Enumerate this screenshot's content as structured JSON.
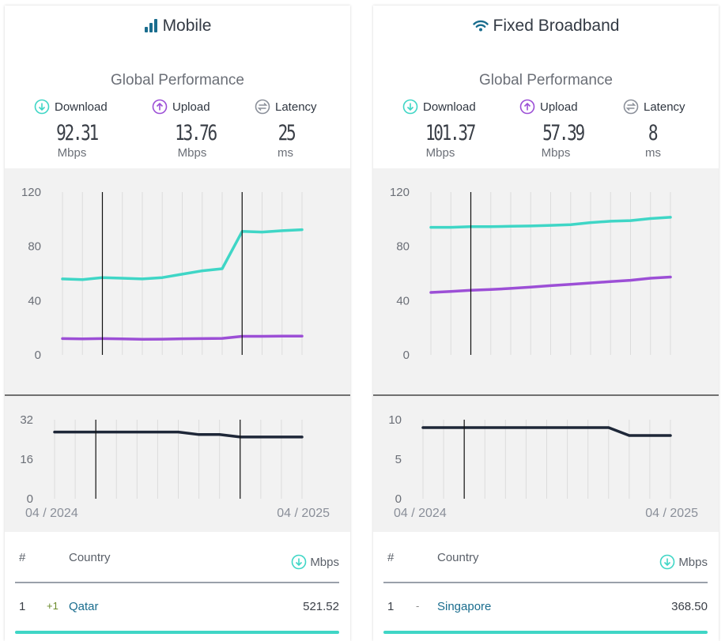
{
  "colors": {
    "download": "#3fd6c6",
    "upload": "#9c4fd6",
    "latency": "#8a8f99",
    "latency_line": "#1e2738",
    "chart_background": "#f2f2f2"
  },
  "panels": [
    {
      "id": "mobile",
      "title": "Mobile",
      "title_icon": "mobile-signal-icon",
      "subtitle": "Global Performance",
      "metrics": {
        "download": {
          "label": "Download",
          "value": "92.31",
          "unit": "Mbps"
        },
        "upload": {
          "label": "Upload",
          "value": "13.76",
          "unit": "Mbps"
        },
        "latency": {
          "label": "Latency",
          "value": "25",
          "unit": "ms"
        }
      },
      "table": {
        "col_rank": "#",
        "col_country": "Country",
        "col_speed": "Mbps",
        "rows": [
          {
            "rank": "1",
            "change": "+1",
            "country": "Qatar",
            "speed": "521.52"
          }
        ]
      }
    },
    {
      "id": "fixed",
      "title": "Fixed Broadband",
      "title_icon": "wifi-icon",
      "subtitle": "Global Performance",
      "metrics": {
        "download": {
          "label": "Download",
          "value": "101.37",
          "unit": "Mbps"
        },
        "upload": {
          "label": "Upload",
          "value": "57.39",
          "unit": "Mbps"
        },
        "latency": {
          "label": "Latency",
          "value": "8",
          "unit": "ms"
        }
      },
      "table": {
        "col_rank": "#",
        "col_country": "Country",
        "col_speed": "Mbps",
        "rows": [
          {
            "rank": "1",
            "change": "-",
            "country": "Singapore",
            "speed": "368.50"
          }
        ]
      }
    }
  ],
  "chart_data": [
    {
      "type": "line",
      "panel": "mobile",
      "x": [
        "2024-04",
        "2024-05",
        "2024-06",
        "2024-07",
        "2024-08",
        "2024-09",
        "2024-10",
        "2024-11",
        "2024-12",
        "2025-01",
        "2025-02",
        "2025-03",
        "2025-04"
      ],
      "x_tick_labels": [
        "04 / 2024",
        "04 / 2025"
      ],
      "y_ticks": [
        0,
        40,
        80,
        120
      ],
      "ylim": [
        0,
        120
      ],
      "series": [
        {
          "key": "download",
          "values": [
            56,
            55.5,
            57,
            56.5,
            56,
            57,
            59.5,
            62,
            63.5,
            91,
            90.5,
            91.5,
            92.3
          ]
        },
        {
          "key": "upload",
          "values": [
            12,
            11.8,
            12,
            11.8,
            11.5,
            11.6,
            11.9,
            12,
            12.2,
            13.7,
            13.7,
            13.8,
            13.8
          ]
        }
      ],
      "latency": {
        "y_ticks": [
          0,
          16,
          32
        ],
        "ylim": [
          0,
          32
        ],
        "values": [
          27,
          27,
          27,
          27,
          27,
          27,
          27,
          26,
          26,
          25,
          25,
          25,
          25
        ]
      },
      "crosshairs_x": [
        "2024-06",
        "2025-01"
      ]
    },
    {
      "type": "line",
      "panel": "fixed",
      "x": [
        "2024-04",
        "2024-05",
        "2024-06",
        "2024-07",
        "2024-08",
        "2024-09",
        "2024-10",
        "2024-11",
        "2024-12",
        "2025-01",
        "2025-02",
        "2025-03",
        "2025-04"
      ],
      "x_tick_labels": [
        "04 / 2024",
        "04 / 2025"
      ],
      "y_ticks": [
        0,
        40,
        80,
        120
      ],
      "ylim": [
        0,
        120
      ],
      "series": [
        {
          "key": "download",
          "values": [
            94,
            94,
            94.5,
            94.5,
            94.8,
            95,
            95.5,
            96,
            97.5,
            98.5,
            99,
            100.5,
            101.4
          ]
        },
        {
          "key": "upload",
          "values": [
            46,
            46.8,
            47.6,
            48.2,
            49,
            50,
            51,
            52,
            53,
            54,
            55,
            56.5,
            57.4
          ]
        }
      ],
      "latency": {
        "y_ticks": [
          0,
          5,
          10
        ],
        "ylim": [
          0,
          10
        ],
        "values": [
          9,
          9,
          9,
          9,
          9,
          9,
          9,
          9,
          9,
          9,
          8,
          8,
          8
        ]
      },
      "crosshairs_x": [
        "2024-06"
      ]
    }
  ]
}
